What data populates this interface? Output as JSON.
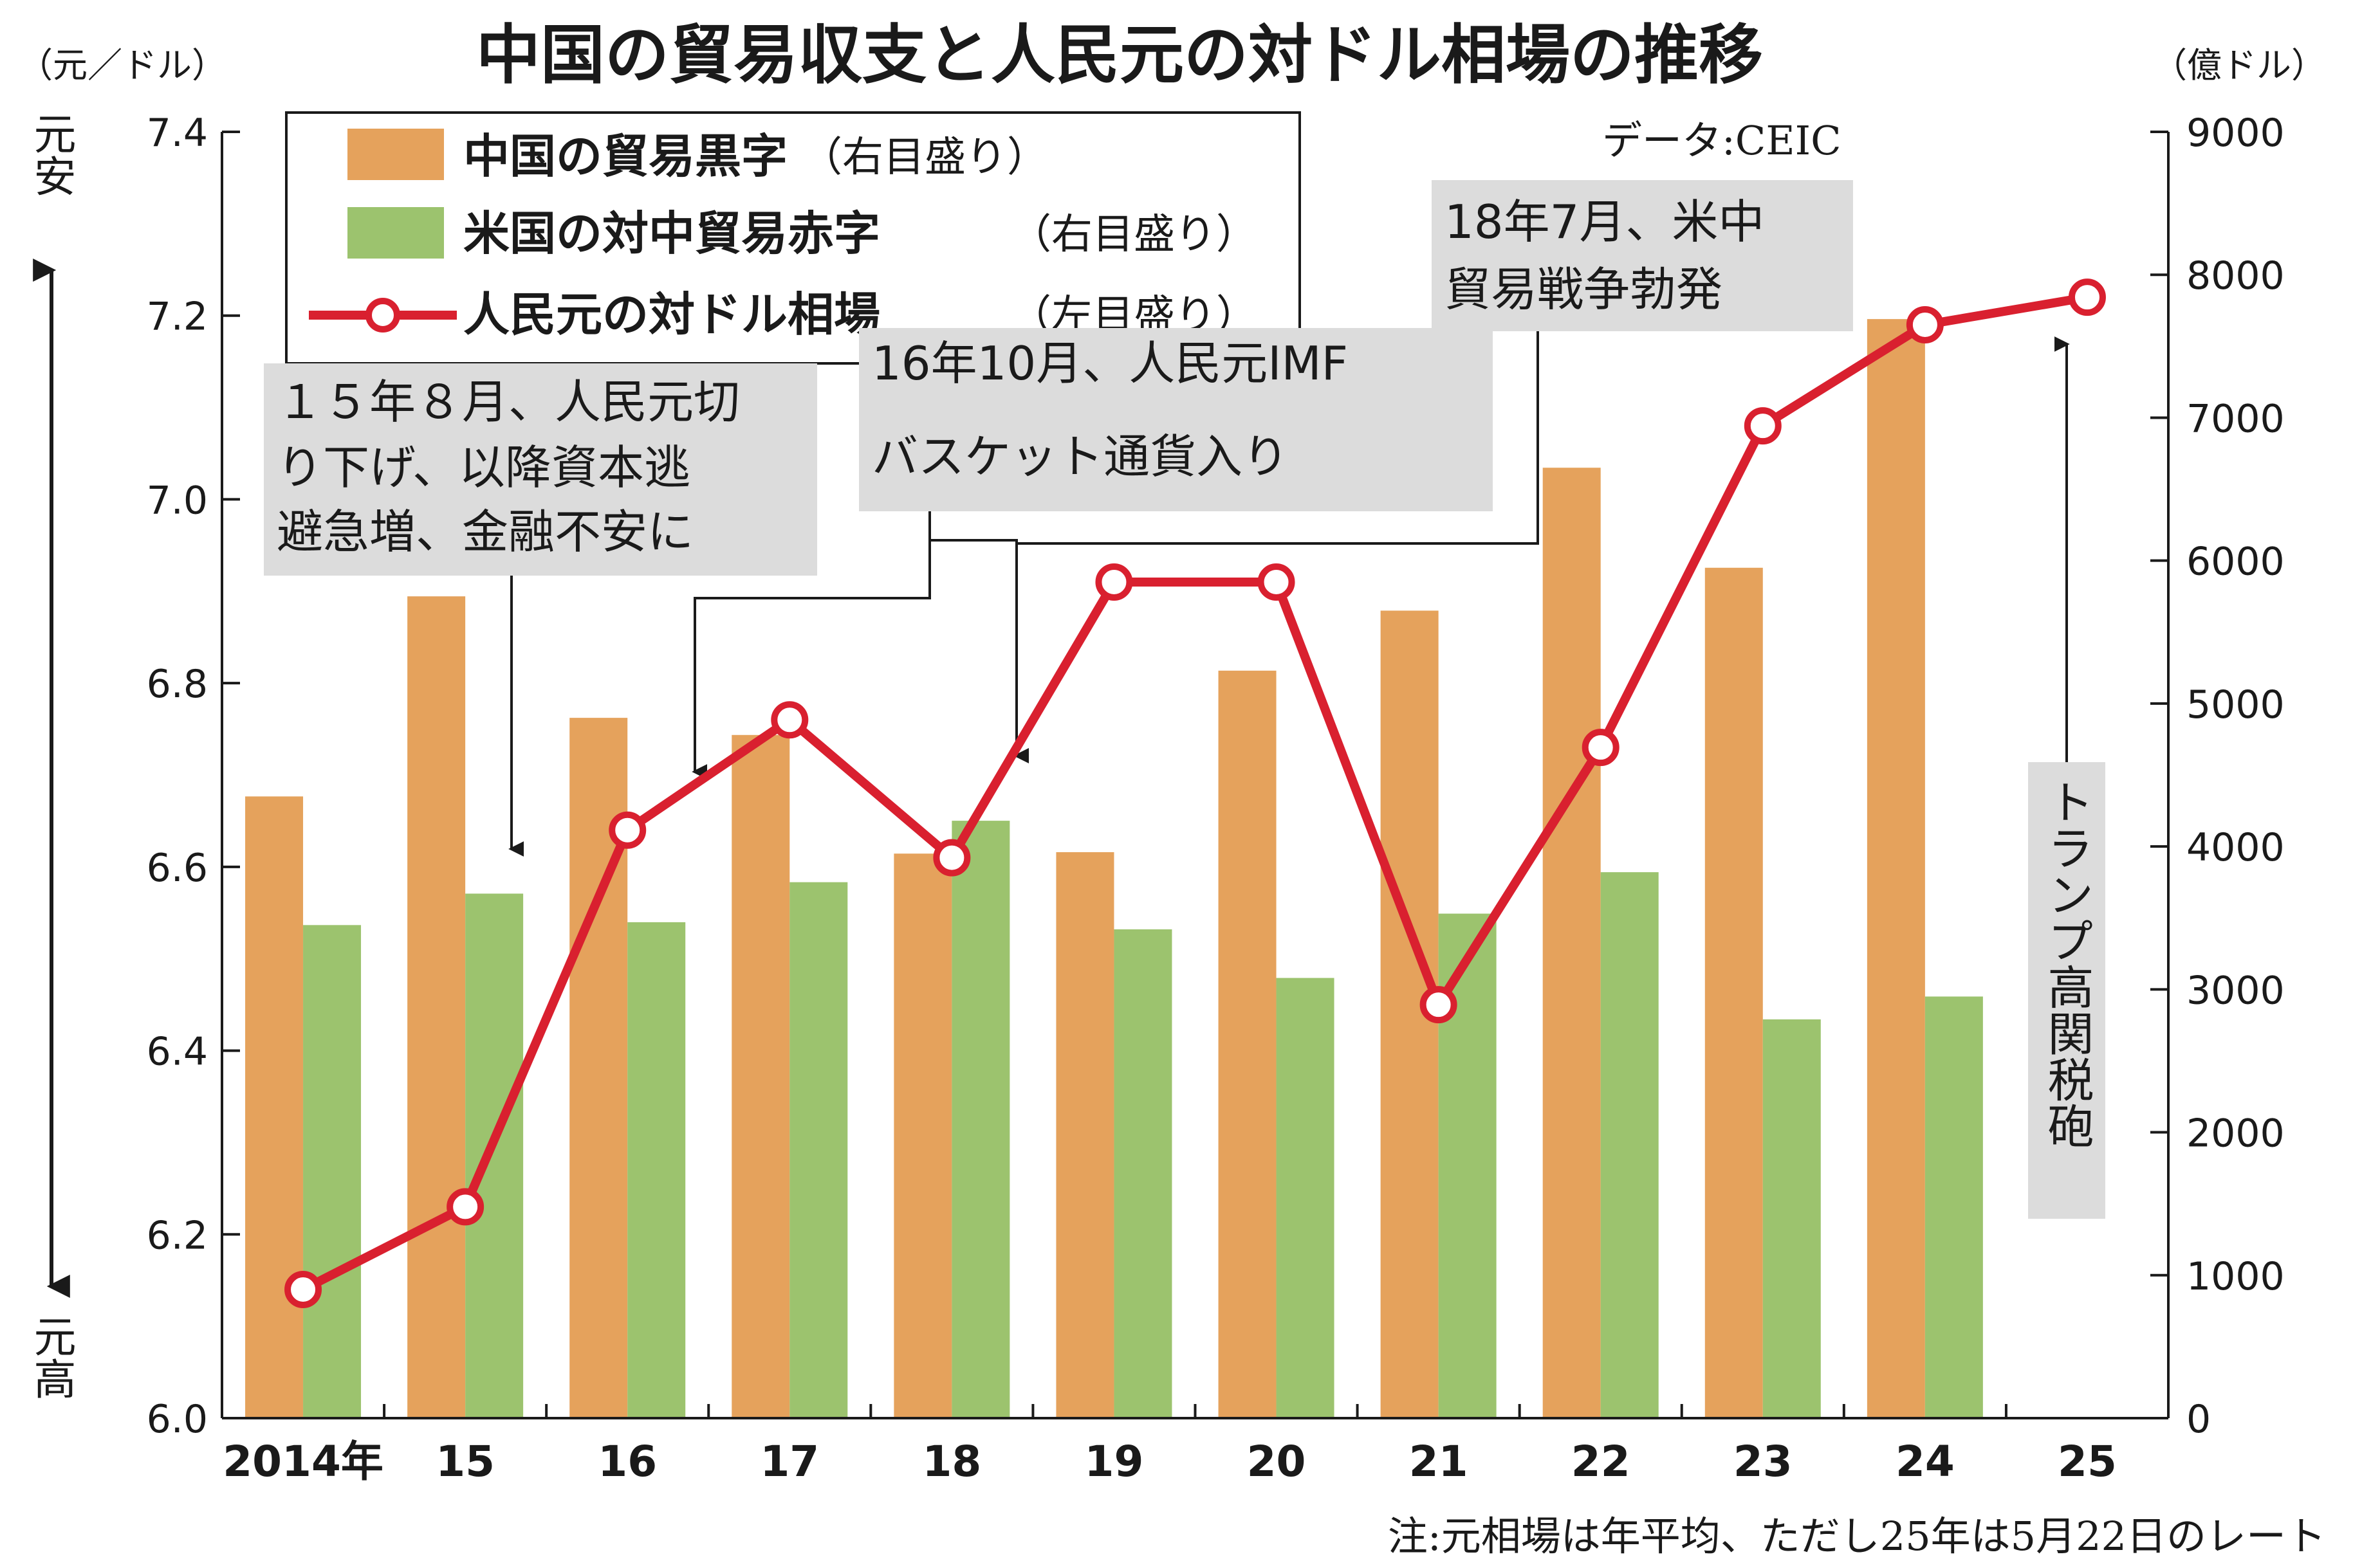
{
  "header": {
    "title": "中国の貿易収支と人民元の対ドル相場の推移",
    "left_unit": "（元／ドル）",
    "right_unit": "（億ドル）",
    "source": "データ:CEIC",
    "note": "注:元相場は年平均、ただし25年は5月22日のレート"
  },
  "side_labels": {
    "top": "元安",
    "bottom": "元高"
  },
  "legend": {
    "items": [
      {
        "label": "中国の貿易黒字",
        "note": "（右目盛り）",
        "color": "#e5a25c"
      },
      {
        "label": "米国の対中貿易赤字",
        "note": "（右目盛り）",
        "color": "#9cc36e"
      },
      {
        "label": "人民元の対ドル相場",
        "note": "（左目盛り）",
        "color": "#d9202f"
      }
    ]
  },
  "annotations": {
    "a2015": {
      "lines": [
        "１５年８月、人民元切",
        "り下げ、以降資本逃",
        "避急増、金融不安に"
      ]
    },
    "a2016": {
      "lines": [
        "16年10月、人民元IMF",
        "バスケット通貨入り"
      ]
    },
    "a2018": {
      "lines": [
        "18年7月、米中",
        "貿易戦争勃発"
      ]
    },
    "a2025": {
      "text": "トランプ高関税砲"
    }
  },
  "chart_data": {
    "type": "bar+line",
    "categories": [
      "2014年",
      "15",
      "16",
      "17",
      "18",
      "19",
      "20",
      "21",
      "22",
      "23",
      "24",
      "25"
    ],
    "series": [
      {
        "name": "中国の貿易黒字",
        "type": "bar",
        "axis": "right",
        "color": "#e5a25c",
        "values": [
          4350,
          5750,
          4900,
          4780,
          3950,
          3960,
          5230,
          5650,
          6650,
          5950,
          7690,
          null
        ]
      },
      {
        "name": "米国の対中貿易赤字",
        "type": "bar",
        "axis": "right",
        "color": "#9cc36e",
        "values": [
          3450,
          3670,
          3470,
          3750,
          4180,
          3420,
          3080,
          3530,
          3820,
          2790,
          2950,
          null
        ]
      },
      {
        "name": "人民元の対ドル相場",
        "type": "line",
        "axis": "left",
        "color": "#d9202f",
        "values": [
          6.14,
          6.23,
          6.64,
          6.76,
          6.61,
          6.91,
          6.91,
          6.45,
          6.73,
          7.08,
          7.19,
          7.22
        ]
      }
    ],
    "left_axis": {
      "ylim": [
        6.0,
        7.4
      ],
      "ticks": [
        "6.0",
        "6.2",
        "6.4",
        "6.6",
        "6.8",
        "7.0",
        "7.2",
        "7.4"
      ]
    },
    "right_axis": {
      "ylim": [
        0,
        9000
      ],
      "ticks": [
        "0",
        "1000",
        "2000",
        "3000",
        "4000",
        "5000",
        "6000",
        "7000",
        "8000",
        "9000"
      ]
    },
    "grid": false,
    "legend_position": "top-left"
  }
}
